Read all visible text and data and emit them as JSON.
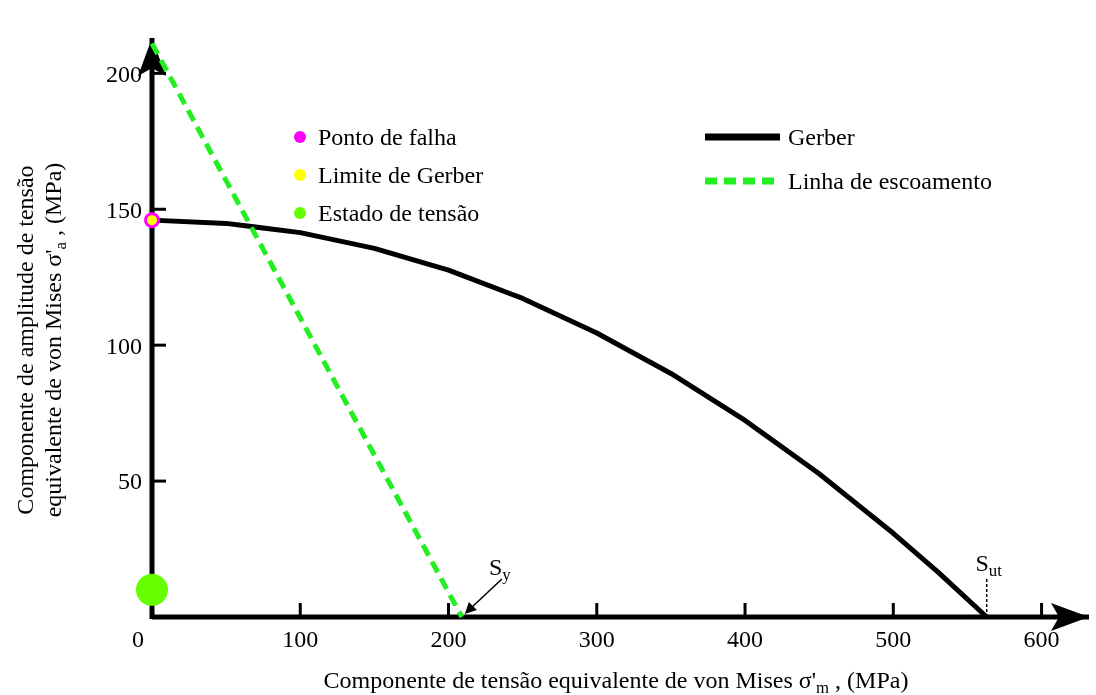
{
  "chart_data": {
    "type": "line",
    "xlabel": "Componente de tensão equivalente de von Mises σ'$_{m}$, (MPa)",
    "ylabel": "Componente de amplitude de tensão\nequivalente de von Mises σ'$_{a}$, (MPa)",
    "xlim": [
      0,
      632
    ],
    "ylim": [
      0,
      213
    ],
    "xticks": [
      0,
      100,
      200,
      300,
      400,
      500,
      600
    ],
    "yticks": [
      50,
      100,
      150,
      200
    ],
    "grid": false,
    "legend": "top",
    "series": [
      {
        "name": "Ponto de falha",
        "type": "scatter",
        "color": "#ff00ff",
        "marker": "circle",
        "x": [
          0
        ],
        "values": [
          146
        ]
      },
      {
        "name": "Limite de Gerber",
        "type": "scatter",
        "color": "#ffff00",
        "marker": "circle",
        "x": [
          0
        ],
        "values": [
          146
        ]
      },
      {
        "name": "Estado de tensão",
        "type": "scatter",
        "color": "#66ff00",
        "marker": "circle",
        "x": [
          0
        ],
        "values": [
          10
        ]
      },
      {
        "name": "Gerber",
        "color": "#000000",
        "line_style": "solid",
        "x": [
          0,
          50,
          100,
          150,
          200,
          250,
          300,
          350,
          400,
          450,
          500,
          530,
          563
        ],
        "values": [
          146,
          144.8,
          141.4,
          135.6,
          127.6,
          117.2,
          104.5,
          89.6,
          72.3,
          52.7,
          30.8,
          16.6,
          0
        ]
      },
      {
        "name": "Linha de escoamento",
        "color": "#22ee22",
        "line_style": "dashed",
        "x": [
          0,
          209
        ],
        "values": [
          211,
          0
        ]
      }
    ],
    "annotations": [
      {
        "text": "S$_{y}$",
        "x": 209,
        "y": 0
      },
      {
        "text": "S$_{ut}$",
        "x": 563,
        "y": 0
      }
    ]
  }
}
